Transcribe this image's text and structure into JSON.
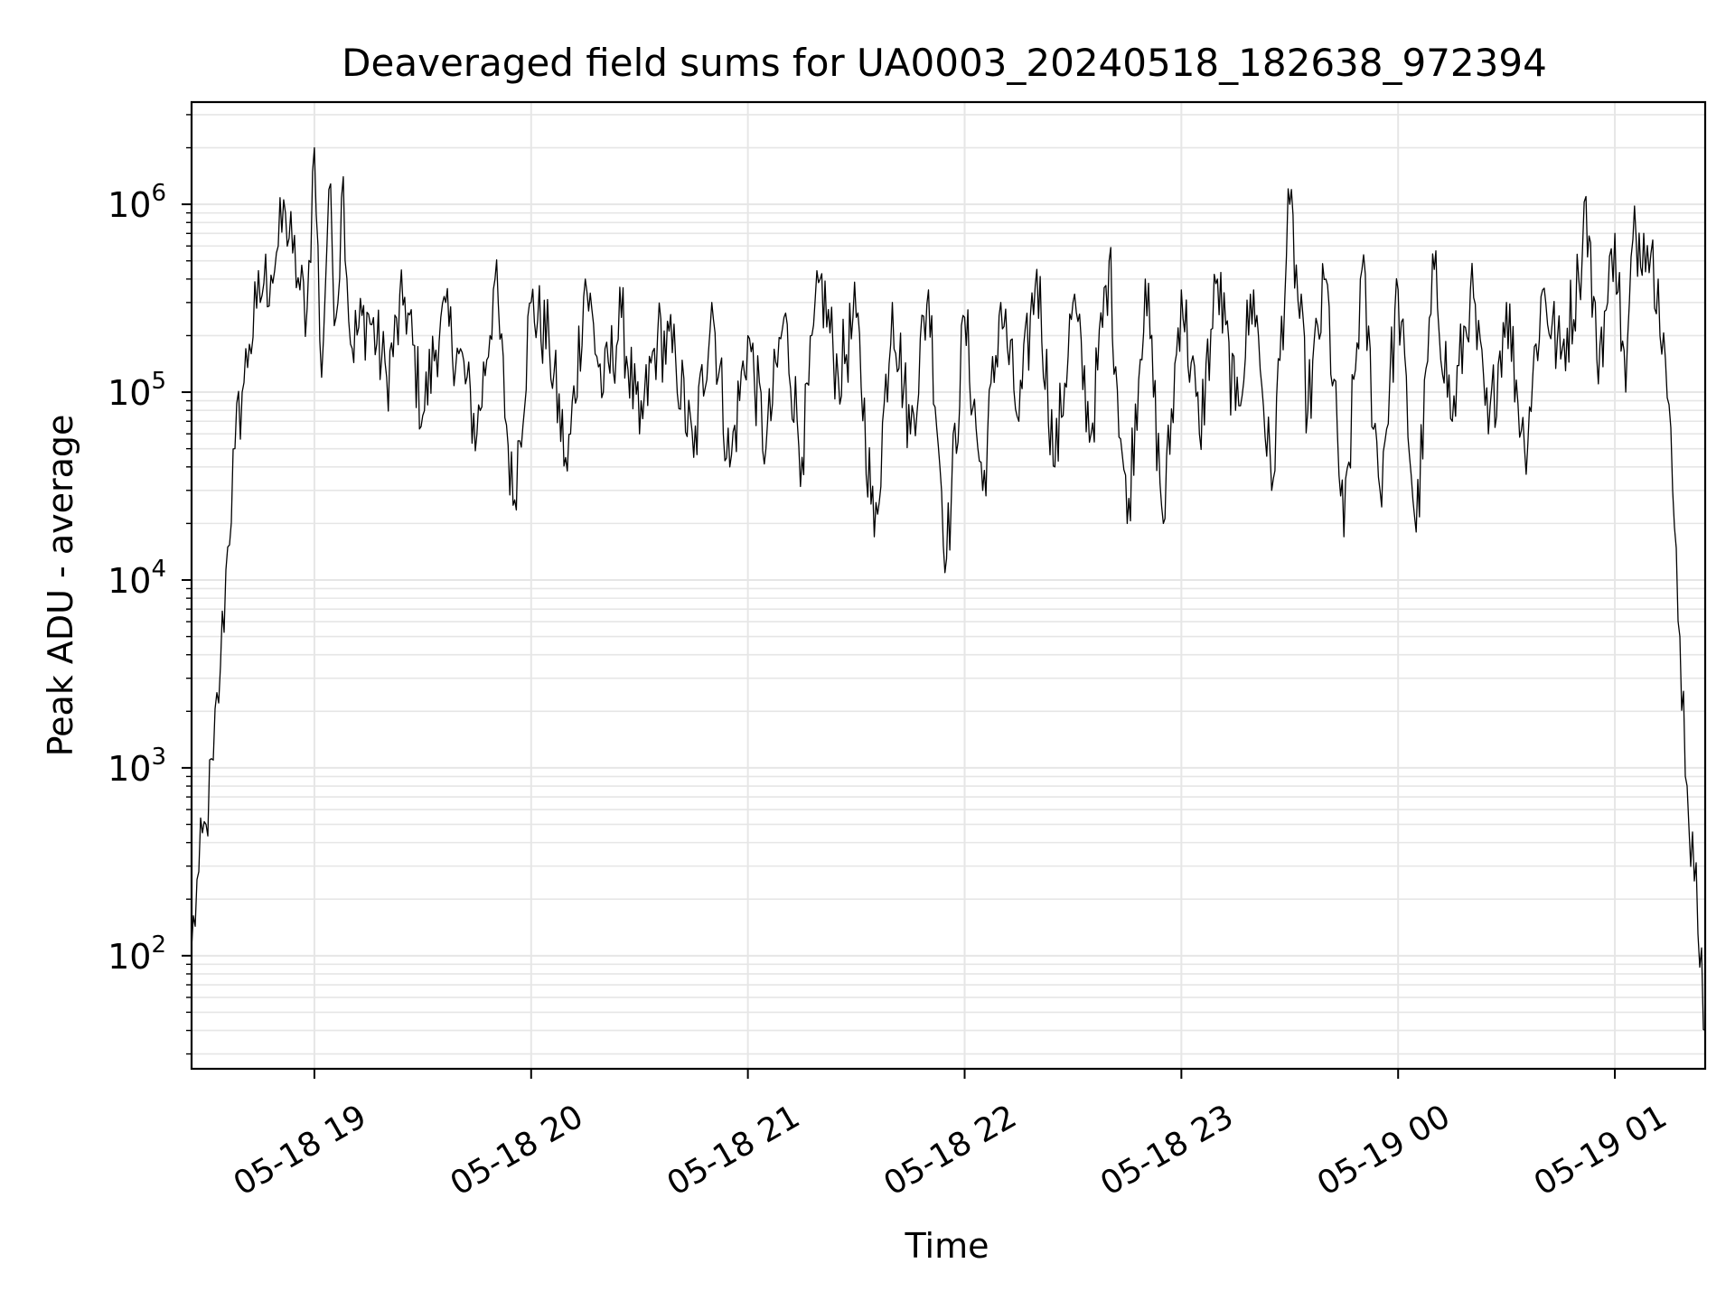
{
  "chart_data": {
    "type": "line",
    "title": "Deaveraged field sums for UA0003_20240518_182638_972394",
    "xlabel": "Time",
    "ylabel": "Peak ADU - average",
    "yscale": "log",
    "xlim": [
      "2024-05-18 18:26",
      "2024-05-19 01:25"
    ],
    "ylim": [
      25,
      3500000
    ],
    "grid": true,
    "line_color": "#000000",
    "grid_color": "#e6e6e6",
    "x_ticks": [
      {
        "x": "2024-05-18 19:00",
        "label": "05-18 19"
      },
      {
        "x": "2024-05-18 20:00",
        "label": "05-18 20"
      },
      {
        "x": "2024-05-18 21:00",
        "label": "05-18 21"
      },
      {
        "x": "2024-05-18 22:00",
        "label": "05-18 22"
      },
      {
        "x": "2024-05-18 23:00",
        "label": "05-18 23"
      },
      {
        "x": "2024-05-19 00:00",
        "label": "05-19 00"
      },
      {
        "x": "2024-05-19 01:00",
        "label": "05-19 01"
      }
    ],
    "y_ticks": [
      {
        "y": 100,
        "base": "10",
        "exp": "2"
      },
      {
        "y": 1000,
        "base": "10",
        "exp": "3"
      },
      {
        "y": 10000,
        "base": "10",
        "exp": "4"
      },
      {
        "y": 100000,
        "base": "10",
        "exp": "5"
      },
      {
        "y": 1000000,
        "base": "10",
        "exp": "6"
      }
    ],
    "series": [
      {
        "points": [
          [
            "2024-05-18 18:26",
            110
          ],
          [
            "2024-05-18 18:28",
            280
          ],
          [
            "2024-05-18 18:30",
            500
          ],
          [
            "2024-05-18 18:32",
            1100
          ],
          [
            "2024-05-18 18:34",
            3500
          ],
          [
            "2024-05-18 18:36",
            15000
          ],
          [
            "2024-05-18 18:38",
            50000
          ],
          [
            "2024-05-18 18:40",
            100000
          ],
          [
            "2024-05-18 18:42",
            180000
          ],
          [
            "2024-05-18 18:44",
            280000
          ],
          [
            "2024-05-18 18:46",
            380000
          ],
          [
            "2024-05-18 18:48",
            420000
          ],
          [
            "2024-05-18 18:50",
            600000
          ],
          [
            "2024-05-18 18:52",
            900000
          ],
          [
            "2024-05-18 18:54",
            550000
          ],
          [
            "2024-05-18 18:56",
            350000
          ],
          [
            "2024-05-18 18:58",
            280000
          ],
          [
            "2024-05-18 19:00",
            2000000
          ],
          [
            "2024-05-18 19:02",
            120000
          ],
          [
            "2024-05-18 19:04",
            1200000
          ],
          [
            "2024-05-18 19:06",
            250000
          ],
          [
            "2024-05-18 19:08",
            1400000
          ],
          [
            "2024-05-18 19:10",
            180000
          ],
          [
            "2024-05-18 19:15",
            260000
          ],
          [
            "2024-05-18 19:20",
            120000
          ],
          [
            "2024-05-18 19:25",
            320000
          ],
          [
            "2024-05-18 19:30",
            75000
          ],
          [
            "2024-05-18 19:35",
            250000
          ],
          [
            "2024-05-18 19:40",
            160000
          ],
          [
            "2024-05-18 19:45",
            60000
          ],
          [
            "2024-05-18 19:50",
            400000
          ],
          [
            "2024-05-18 19:55",
            25000
          ],
          [
            "2024-05-18 20:00",
            300000
          ],
          [
            "2024-05-18 20:05",
            180000
          ],
          [
            "2024-05-18 20:10",
            38000
          ],
          [
            "2024-05-18 20:15",
            400000
          ],
          [
            "2024-05-18 20:20",
            100000
          ],
          [
            "2024-05-18 20:25",
            250000
          ],
          [
            "2024-05-18 20:30",
            60000
          ],
          [
            "2024-05-18 20:35",
            200000
          ],
          [
            "2024-05-18 20:40",
            150000
          ],
          [
            "2024-05-18 20:45",
            45000
          ],
          [
            "2024-05-18 20:50",
            300000
          ],
          [
            "2024-05-18 20:55",
            40000
          ],
          [
            "2024-05-18 21:00",
            200000
          ],
          [
            "2024-05-18 21:05",
            50000
          ],
          [
            "2024-05-18 21:10",
            250000
          ],
          [
            "2024-05-18 21:15",
            45000
          ],
          [
            "2024-05-18 21:20",
            400000
          ],
          [
            "2024-05-18 21:25",
            120000
          ],
          [
            "2024-05-18 21:30",
            250000
          ],
          [
            "2024-05-18 21:35",
            17000
          ],
          [
            "2024-05-18 21:40",
            300000
          ],
          [
            "2024-05-18 21:45",
            60000
          ],
          [
            "2024-05-18 21:50",
            350000
          ],
          [
            "2024-05-18 21:55",
            13000
          ],
          [
            "2024-05-18 22:00",
            250000
          ],
          [
            "2024-05-18 22:05",
            30000
          ],
          [
            "2024-05-18 22:10",
            300000
          ],
          [
            "2024-05-18 22:15",
            70000
          ],
          [
            "2024-05-18 22:20",
            450000
          ],
          [
            "2024-05-18 22:25",
            40000
          ],
          [
            "2024-05-18 22:30",
            300000
          ],
          [
            "2024-05-18 22:35",
            60000
          ],
          [
            "2024-05-18 22:40",
            500000
          ],
          [
            "2024-05-18 22:45",
            20000
          ],
          [
            "2024-05-18 22:50",
            400000
          ],
          [
            "2024-05-18 22:55",
            20000
          ],
          [
            "2024-05-18 23:00",
            350000
          ],
          [
            "2024-05-18 23:05",
            60000
          ],
          [
            "2024-05-18 23:10",
            400000
          ],
          [
            "2024-05-18 23:15",
            80000
          ],
          [
            "2024-05-18 23:20",
            350000
          ],
          [
            "2024-05-18 23:25",
            30000
          ],
          [
            "2024-05-18 23:30",
            1000000
          ],
          [
            "2024-05-18 23:35",
            80000
          ],
          [
            "2024-05-18 23:40",
            400000
          ],
          [
            "2024-05-18 23:45",
            17000
          ],
          [
            "2024-05-18 23:50",
            450000
          ],
          [
            "2024-05-18 23:55",
            30000
          ],
          [
            "2024-05-19 00:00",
            350000
          ],
          [
            "2024-05-19 00:05",
            18000
          ],
          [
            "2024-05-19 00:10",
            450000
          ],
          [
            "2024-05-19 00:15",
            70000
          ],
          [
            "2024-05-19 00:20",
            350000
          ],
          [
            "2024-05-19 00:25",
            60000
          ],
          [
            "2024-05-19 00:30",
            300000
          ],
          [
            "2024-05-19 00:35",
            50000
          ],
          [
            "2024-05-19 00:40",
            350000
          ],
          [
            "2024-05-19 00:45",
            150000
          ],
          [
            "2024-05-19 00:50",
            400000
          ],
          [
            "2024-05-19 00:52",
            1100000
          ],
          [
            "2024-05-19 00:55",
            150000
          ],
          [
            "2024-05-19 00:58",
            300000
          ],
          [
            "2024-05-19 01:00",
            700000
          ],
          [
            "2024-05-19 01:03",
            100000
          ],
          [
            "2024-05-19 01:05",
            650000
          ],
          [
            "2024-05-19 01:08",
            700000
          ],
          [
            "2024-05-19 01:10",
            550000
          ],
          [
            "2024-05-19 01:12",
            400000
          ],
          [
            "2024-05-19 01:14",
            150000
          ],
          [
            "2024-05-19 01:16",
            30000
          ],
          [
            "2024-05-19 01:18",
            5000
          ],
          [
            "2024-05-19 01:20",
            800
          ],
          [
            "2024-05-19 01:22",
            250
          ],
          [
            "2024-05-19 01:24",
            110
          ],
          [
            "2024-05-19 01:25",
            40
          ]
        ]
      }
    ]
  }
}
